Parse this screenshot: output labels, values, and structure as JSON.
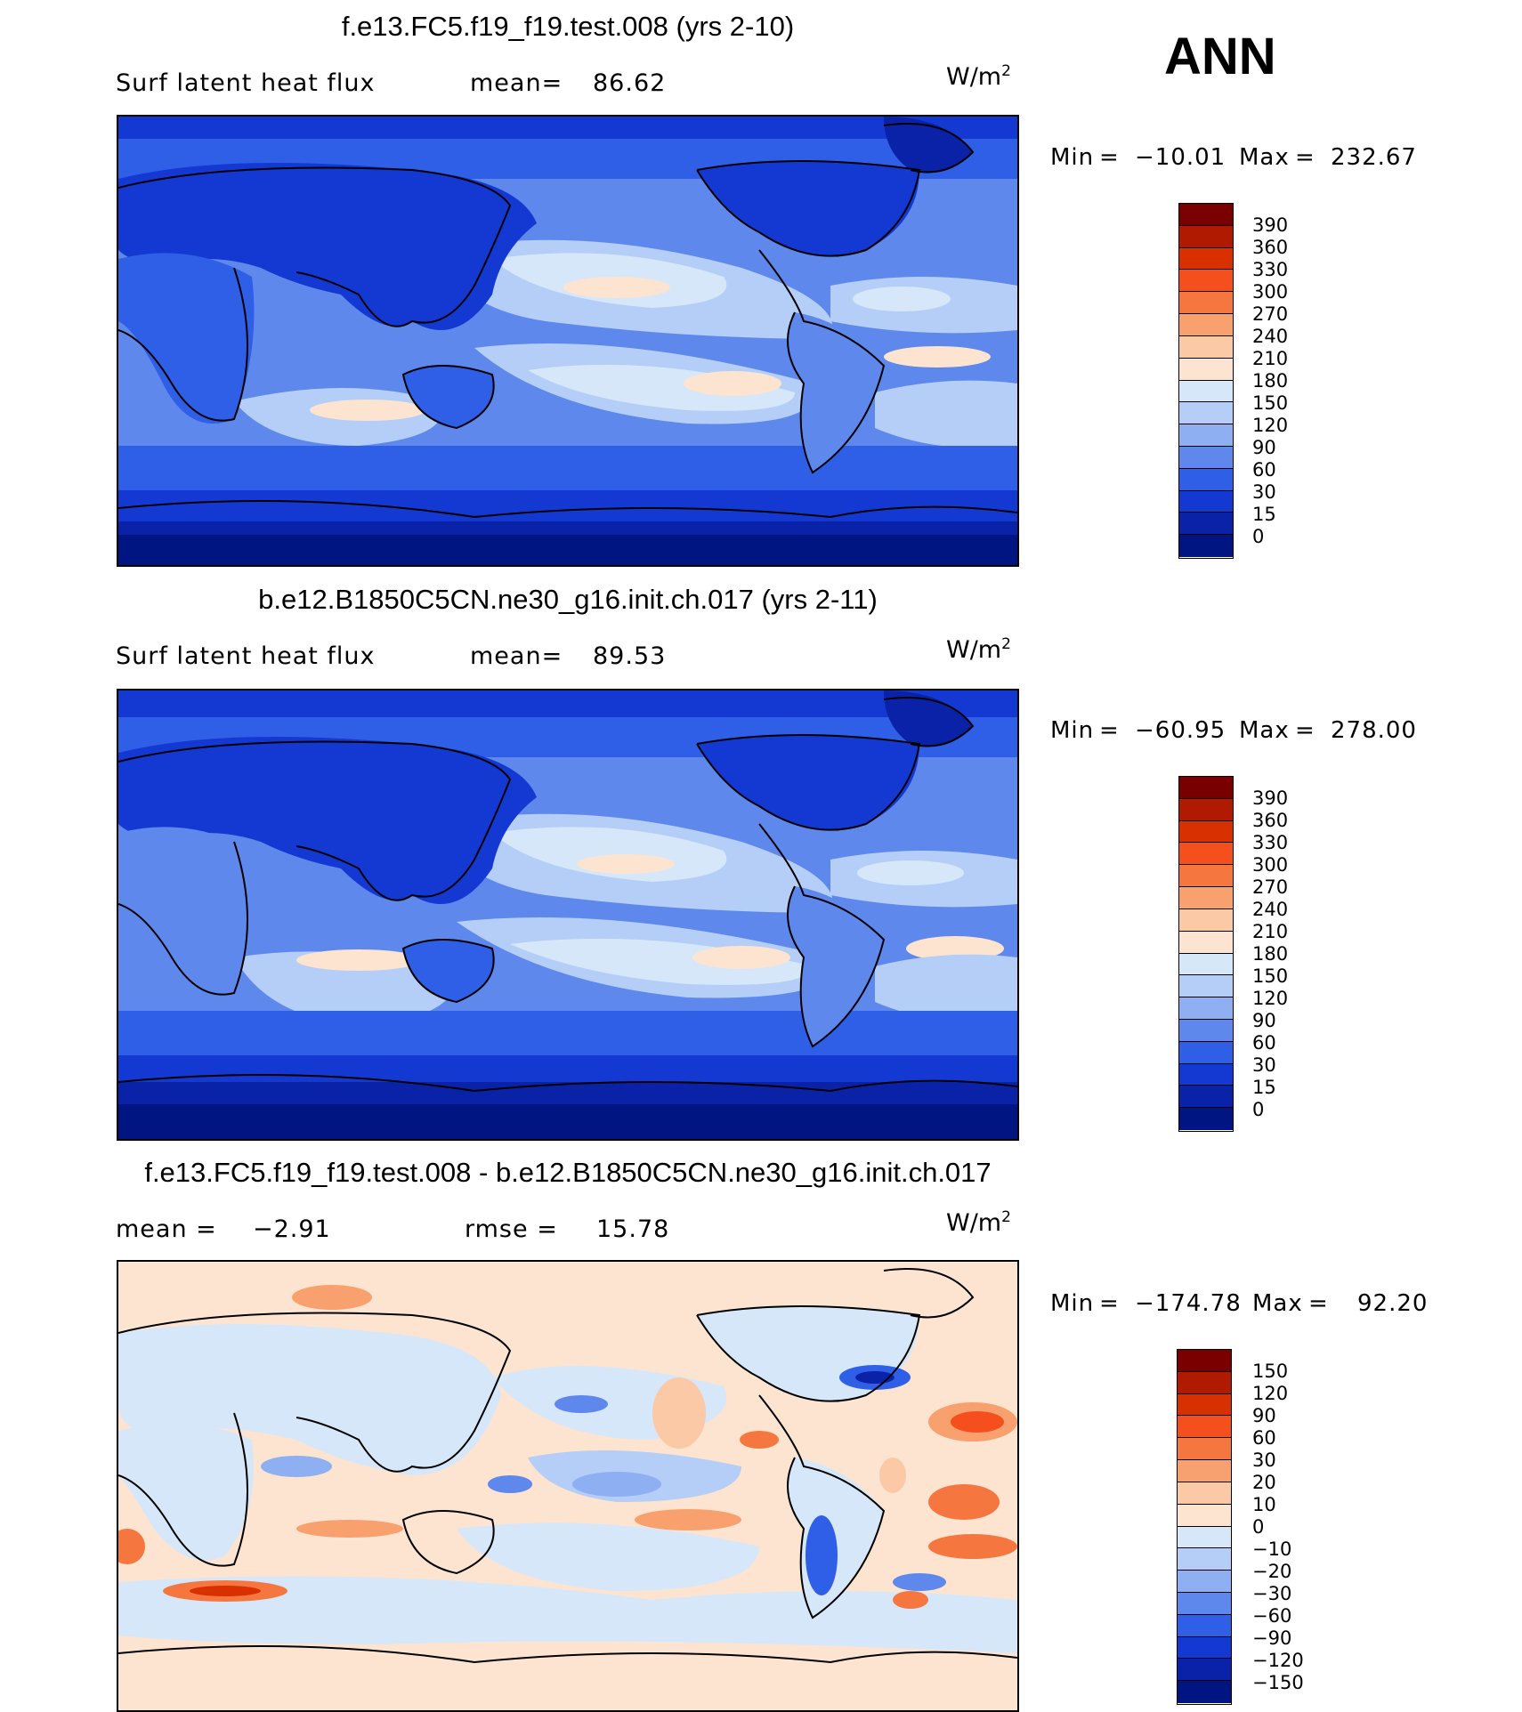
{
  "season": "ANN",
  "units_base": "W/m",
  "units_exp": "2",
  "panels": [
    {
      "title": "f.e13.FC5.f19_f19.test.008 (yrs 2-10)",
      "left_label": "Surf  latent  heat  flux",
      "stat_label": "mean=",
      "stat_value": "86.62",
      "min_label": "Min",
      "min_value": "−10.01",
      "max_label": "Max",
      "max_value": "232.67",
      "colorbar": {
        "labels": [
          "390",
          "360",
          "330",
          "300",
          "270",
          "240",
          "210",
          "180",
          "150",
          "120",
          "90",
          "60",
          "30",
          "15",
          "0"
        ],
        "colors": [
          "#7a0000",
          "#b01a00",
          "#d93000",
          "#f54f1e",
          "#f5773f",
          "#f8a06e",
          "#fbc9a6",
          "#fde4d0",
          "#d6e7fa",
          "#b4cef7",
          "#8eb0f2",
          "#5f88ec",
          "#2e5fe6",
          "#1438d2",
          "#0a22a8",
          "#001482"
        ]
      }
    },
    {
      "title": "b.e12.B1850C5CN.ne30_g16.init.ch.017 (yrs 2-11)",
      "left_label": "Surf  latent  heat  flux",
      "stat_label": "mean=",
      "stat_value": "89.53",
      "min_label": "Min",
      "min_value": "−60.95",
      "max_label": "Max",
      "max_value": "278.00",
      "colorbar": {
        "labels": [
          "390",
          "360",
          "330",
          "300",
          "270",
          "240",
          "210",
          "180",
          "150",
          "120",
          "90",
          "60",
          "30",
          "15",
          "0"
        ],
        "colors": [
          "#7a0000",
          "#b01a00",
          "#d93000",
          "#f54f1e",
          "#f5773f",
          "#f8a06e",
          "#fbc9a6",
          "#fde4d0",
          "#d6e7fa",
          "#b4cef7",
          "#8eb0f2",
          "#5f88ec",
          "#2e5fe6",
          "#1438d2",
          "#0a22a8",
          "#001482"
        ]
      }
    },
    {
      "title": "f.e13.FC5.f19_f19.test.008 - b.e12.B1850C5CN.ne30_g16.init.ch.017",
      "left_label": "mean  =",
      "left_value": "−2.91",
      "stat_label": "rmse  =",
      "stat_value": "15.78",
      "min_label": "Min",
      "min_value": "−174.78",
      "max_label": "Max",
      "max_value": "92.20",
      "colorbar": {
        "labels": [
          "150",
          "120",
          "90",
          "60",
          "30",
          "20",
          "10",
          "0",
          "−10",
          "−20",
          "−30",
          "−60",
          "−90",
          "−120",
          "−150"
        ],
        "colors": [
          "#7a0000",
          "#b01a00",
          "#d93000",
          "#f54f1e",
          "#f5773f",
          "#f8a06e",
          "#fbc9a6",
          "#fde4d0",
          "#d6e7fa",
          "#b4cef7",
          "#8eb0f2",
          "#5f88ec",
          "#2e5fe6",
          "#1438d2",
          "#0a22a8",
          "#001482"
        ]
      }
    }
  ]
}
